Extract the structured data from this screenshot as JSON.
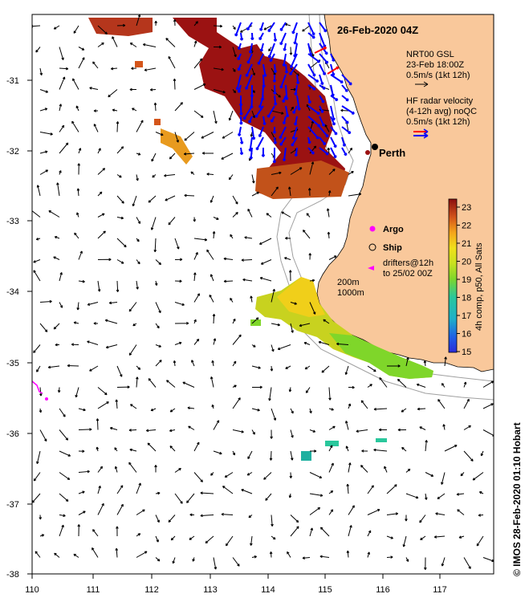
{
  "title": "26-Feb-2020 04Z",
  "credit": "© IMOS 28-Feb-2020 01:10 Hobart",
  "x_ticks": [
    "110",
    "111",
    "112",
    "113",
    "114",
    "115",
    "116",
    "117"
  ],
  "y_ticks": [
    "-31",
    "-32",
    "-33",
    "-34",
    "-35",
    "-36",
    "-37",
    "-38"
  ],
  "place_label": "Perth",
  "legend": {
    "model_line1": "NRT00 GSL",
    "model_line2": "23-Feb 18:00Z",
    "model_line3": "0.5m/s (1kt 12h)",
    "radar_line1": "HF radar velocity",
    "radar_line2": "(4-12h avg) noQC",
    "radar_line3": "0.5m/s (1kt 12h)",
    "argo": "Argo",
    "ship": "Ship",
    "drifters_line1": "drifters@12h",
    "drifters_line2": "to 25/02 00Z",
    "isobath_200": "200m",
    "isobath_1000": "1000m"
  },
  "colorbar": {
    "label": "4h comp, p50, All Sats",
    "ticks": [
      "23",
      "22",
      "21",
      "20",
      "19",
      "18",
      "17",
      "16",
      "15"
    ],
    "range": [
      15,
      23.8
    ]
  },
  "colors": {
    "land": "#f9c89b",
    "coast": "#000000",
    "isobath": "#a0a0a0",
    "model_arrow": "#000000",
    "radar_arrow": "#0000ff",
    "radar_arrow_red": "#ff0000",
    "argo": "#ff00ff",
    "drifter": "#ff00ff"
  },
  "map_extent": {
    "lon": [
      110,
      117.9
    ],
    "lat": [
      -38,
      -30.2
    ]
  }
}
